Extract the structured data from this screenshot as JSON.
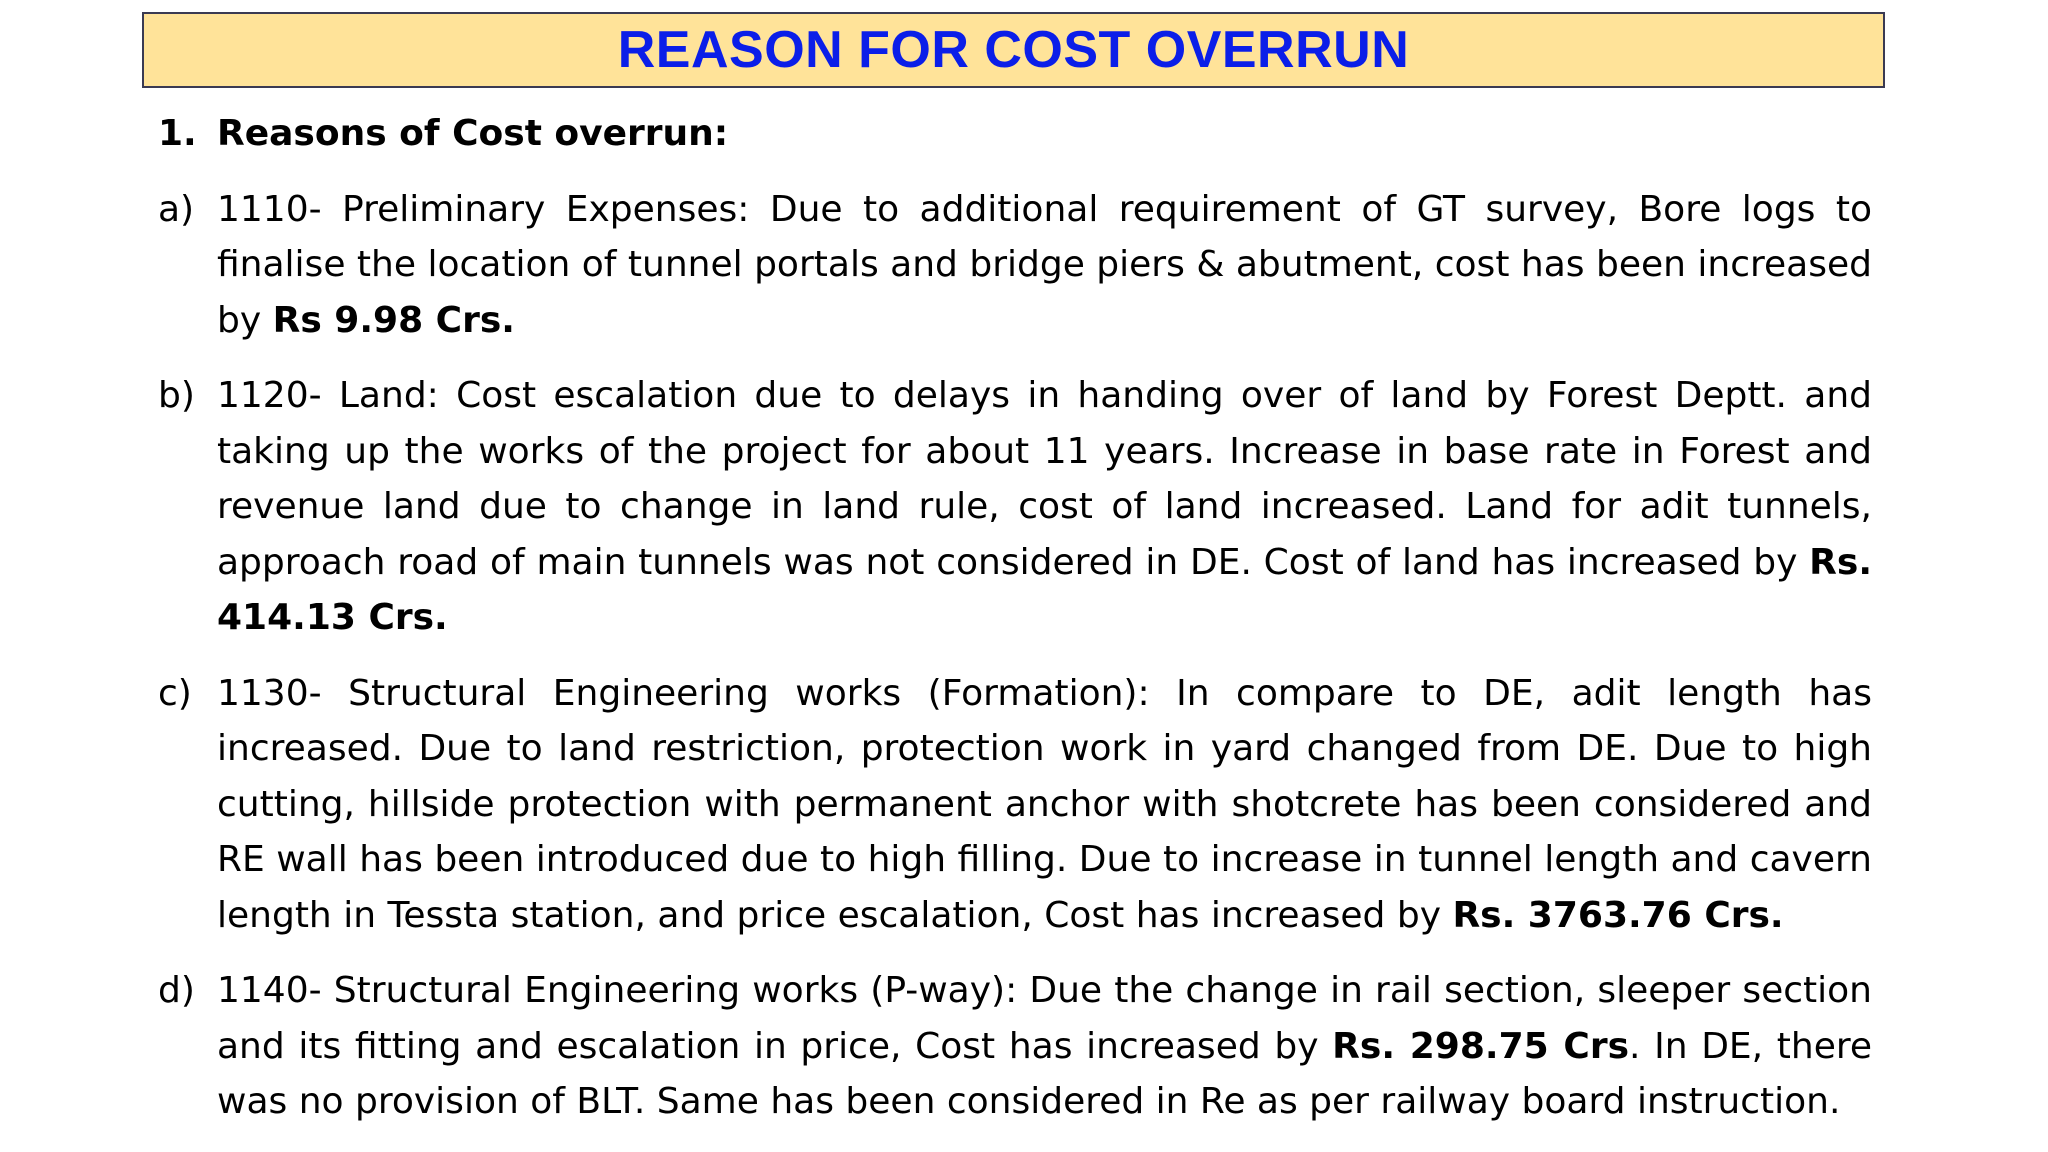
{
  "title": "REASON FOR COST OVERRUN",
  "heading": {
    "number": "1.",
    "text": "Reasons of Cost overrun:"
  },
  "items": [
    {
      "marker": "a)",
      "text": "1110- Preliminary Expenses: Due to additional requirement of GT survey, Bore logs to finalise the location of tunnel portals and bridge piers & abutment, cost has been increased by ",
      "amount": "Rs 9.98 Crs.",
      "after": ""
    },
    {
      "marker": "b)",
      "text": "1120- Land: Cost escalation due to delays in handing over of land by Forest Deptt. and taking up the works of the project for about 11 years. Increase in base rate in Forest and revenue land due to change in land rule, cost of land increased. Land for adit tunnels, approach road of main tunnels was not considered in DE. Cost of land has increased by ",
      "amount": "Rs. 414.13 Crs.",
      "after": ""
    },
    {
      "marker": "c)",
      "text": "1130- Structural Engineering works (Formation): In compare to DE, adit length has increased. Due to land restriction, protection work in yard changed from DE. Due to high cutting, hillside protection with permanent anchor with shotcrete has been considered and  RE wall has been introduced due to high filling. Due to increase in tunnel length and cavern length in Tessta station, and price escalation, Cost has increased by ",
      "amount": "Rs. 3763.76 Crs.",
      "after": ""
    },
    {
      "marker": "d)",
      "text": "1140- Structural Engineering works (P-way): Due the change in rail section, sleeper section and its fitting and escalation in price, Cost has increased by ",
      "amount": "Rs. 298.75 Crs",
      "after": ". In DE, there was no provision of BLT. Same has been considered in Re as per railway board instruction."
    }
  ],
  "colors": {
    "title_background": "#ffe399",
    "title_text": "#0b1ee8",
    "title_border": "#3a3a52",
    "body_text": "#000000"
  }
}
